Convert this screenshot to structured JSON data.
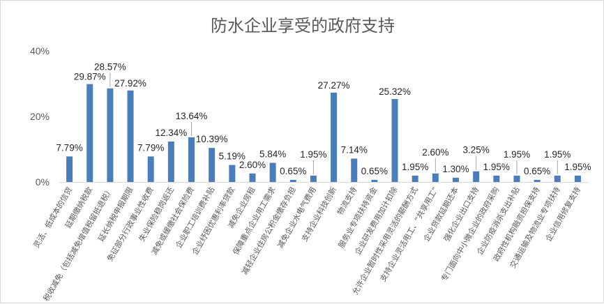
{
  "chart_data": {
    "type": "bar",
    "title": "防水企业享受的政府支持",
    "xlabel": "",
    "ylabel": "",
    "ylim": [
      0,
      40
    ],
    "yticks": [
      "0%",
      "20%",
      "40%"
    ],
    "grid": false,
    "legend": "none",
    "colors": {
      "bar": "#4a7ebb",
      "axis": "#d9d9d9",
      "leader": "#a6a6a6"
    },
    "categories": [
      "灵活、低成本的信贷",
      "延期缴纳税款",
      "税收减免（包括减免增值税留抵退税）",
      "延长纳税申报期限",
      "免征部分行政事业性收费",
      "失业保险稳岗返还",
      "减免或缓缴社会保险费",
      "企业职工培训费补贴",
      "企业纾困优惠利率贷款",
      "减免企业房租",
      "保障重点企业用工需求",
      "减轻企业住房公积金缴存负担",
      "减免企业水电气费用",
      "支持企业科技创新",
      "物流支持",
      "服务业专项扶持资金",
      "企业研发费用加计扣除",
      "允许企业暂时性采用灵活的薪酬方式",
      "支持企业灵活用工、“共享用工”",
      "企业贷款延期还本",
      "强化企业出口支持",
      "专门面向中小微企业的政府采购",
      "企业防疫消杀支出补贴",
      "政府性机构融资担保支持",
      "交通运输及物流业专项扶持",
      "企业信用修复支持"
    ],
    "values": [
      7.79,
      29.87,
      28.57,
      27.92,
      7.79,
      12.34,
      13.64,
      10.39,
      5.19,
      2.6,
      5.84,
      0.65,
      1.95,
      27.27,
      7.14,
      0.65,
      25.32,
      1.95,
      2.6,
      1.3,
      3.25,
      1.95,
      1.95,
      0.65,
      1.95,
      1.95
    ],
    "data_labels": [
      "7.79%",
      "29.87%",
      "28.57%",
      "27.92%",
      "7.79%",
      "12.34%",
      "13.64%",
      "10.39%",
      "5.19%",
      "2.60%",
      "5.84%",
      "0.65%",
      "1.95%",
      "27.27%",
      "7.14%",
      "0.65%",
      "25.32%",
      "1.95%",
      "2.60%",
      "1.30%",
      "3.25%",
      "1.95%",
      "1.95%",
      "0.65%",
      "1.95%",
      "1.95%"
    ]
  }
}
